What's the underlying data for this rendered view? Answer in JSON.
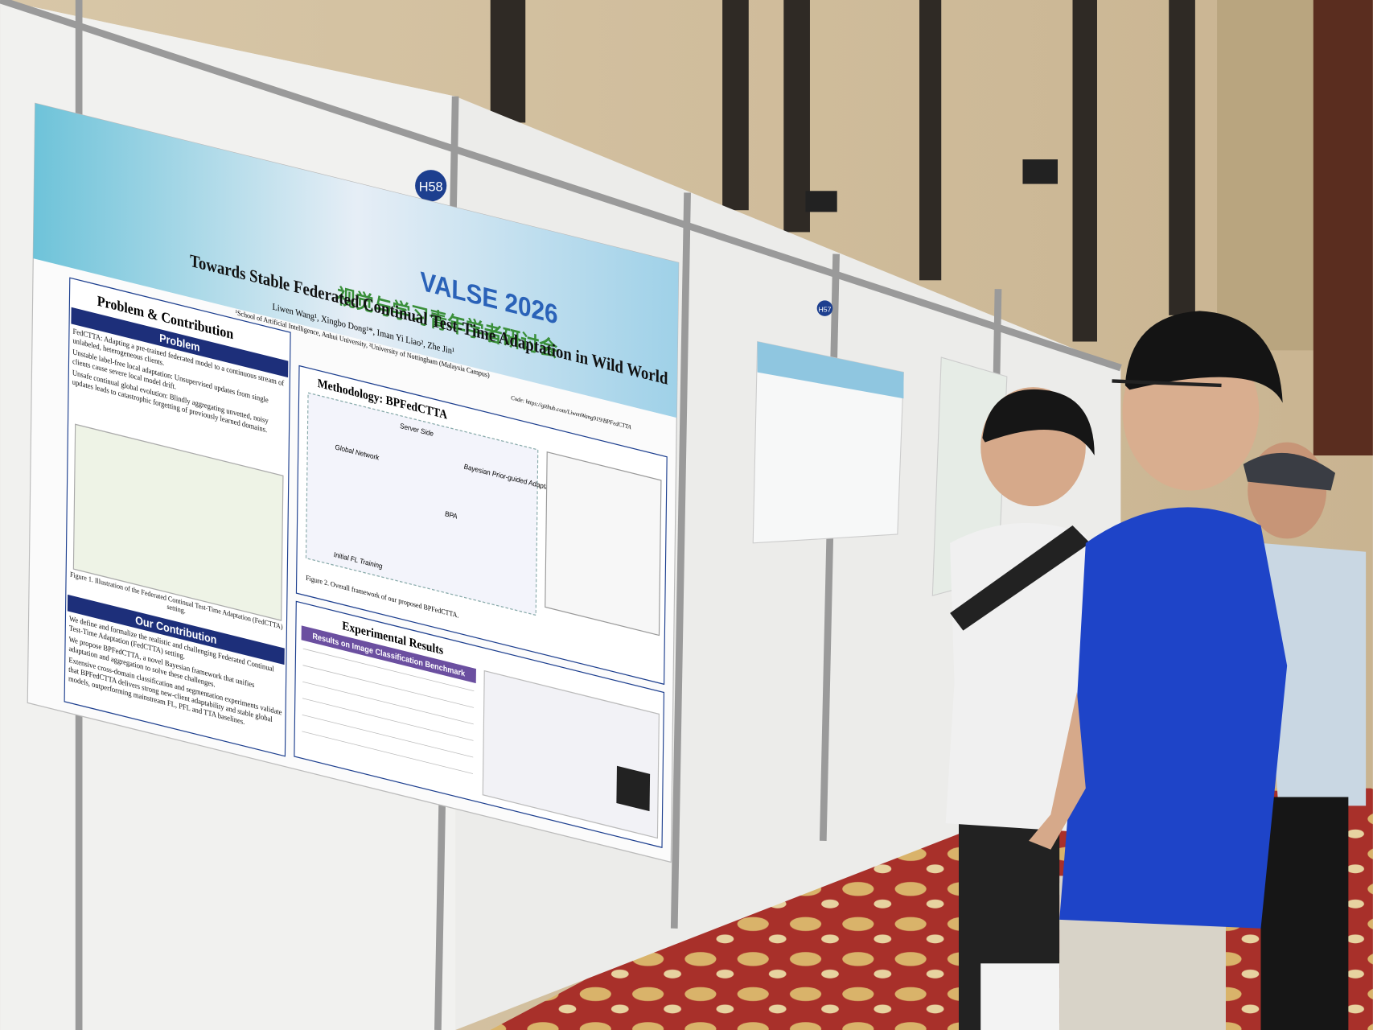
{
  "booths": [
    "H58",
    "H57"
  ],
  "poster": {
    "conference": "VALSE 2026",
    "conference_cn": "视觉与学习青年学者研讨会",
    "title": "Towards Stable Federated Continual Test-Time Adaptation in Wild World",
    "authors": "Liwen Wang¹, Xingbo Dong¹*, Iman Yi Liao², Zhe Jin¹",
    "affiliations": "¹School of Artificial Intelligence, Anhui University, ²University of Nottingham (Malaysia Campus)",
    "code": "Code: https://github.com/LiwenWang919/BPFedCTTA",
    "sections": {
      "problem_contribution": "Problem & Contribution",
      "problem": "Problem",
      "methodology": "Methodology: BPFedCTTA",
      "experimental_results": "Experimental Results",
      "our_contribution": "Our Contribution"
    },
    "problem_items": [
      "FedCTTA: Adapting a pre-trained federated model to a continuous stream of unlabeled, heterogeneous clients.",
      "Unstable label-free local adaptation: Unsupervised updates from single clients cause severe local model drift.",
      "Unsafe continual global evolution: Blindly aggregating unvetted, noisy updates leads to catastrophic forgetting of previously learned domains."
    ],
    "figure1_caption": "Figure 1. Illustration of the Federated Continual Test-Time Adaptation (FedCTTA) setting.",
    "contribution_items": [
      "We define and formalize the realistic and challenging Federated Continual Test-Time Adaptation (FedCTTA) setting.",
      "We propose BPFedCTTA, a novel Bayesian framework that unifies adaptation and aggregation to solve these challenges.",
      "Extensive cross-domain classification and segmentation experiments validate that BPFedCTTA delivers strong new-client adaptability and stable global models, outperforming mainstream FL, PFL and TTA baselines."
    ],
    "method_labels": [
      "Server Side",
      "Global Network",
      "Initial FL Training",
      "BPA",
      "Bayesian Prior-guided Adaptation"
    ],
    "figure2_caption": "Figure 2. Overall framework of our proposed BPFedCTTA.",
    "results_heading": "Results on Image Classification Benchmark"
  }
}
